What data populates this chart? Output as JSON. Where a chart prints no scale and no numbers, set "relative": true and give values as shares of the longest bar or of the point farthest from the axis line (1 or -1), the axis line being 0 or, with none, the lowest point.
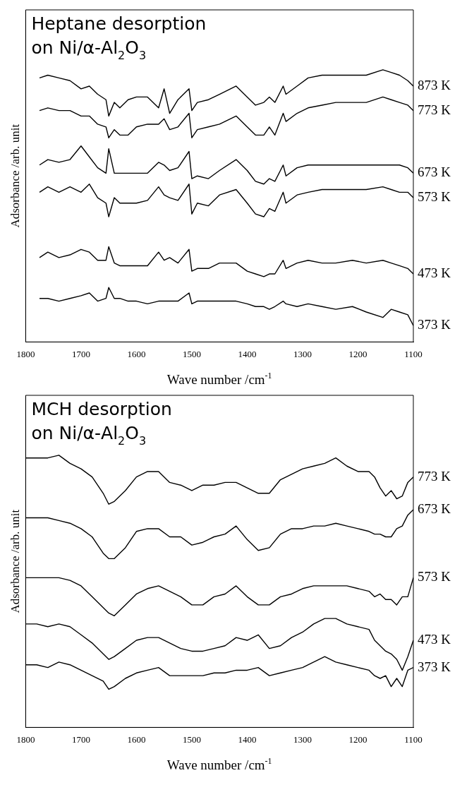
{
  "chart_data": [
    {
      "type": "line",
      "title": "Heptane desorption\non Ni/α-Al$_{2}$O$_{3}$",
      "xlabel": "Wave number /cm$^{-1}$",
      "ylabel": "Adsorbance /arb. unit",
      "relative": true,
      "xlim": [
        1800,
        1100
      ],
      "xticks": [
        1800,
        1700,
        1600,
        1500,
        1400,
        1300,
        1200,
        1100
      ],
      "x": [
        1775,
        1760,
        1740,
        1720,
        1700,
        1685,
        1670,
        1655,
        1650,
        1640,
        1630,
        1615,
        1600,
        1580,
        1560,
        1550,
        1540,
        1525,
        1505,
        1500,
        1490,
        1470,
        1450,
        1420,
        1400,
        1385,
        1370,
        1360,
        1350,
        1335,
        1330,
        1310,
        1290,
        1265,
        1240,
        1210,
        1185,
        1155,
        1140,
        1125,
        1110,
        1100
      ],
      "series": [
        {
          "name": "873 K",
          "color": "#000000",
          "values": [
            0.97,
            0.98,
            0.97,
            0.96,
            0.93,
            0.94,
            0.91,
            0.89,
            0.83,
            0.88,
            0.86,
            0.89,
            0.9,
            0.9,
            0.86,
            0.93,
            0.84,
            0.89,
            0.93,
            0.85,
            0.88,
            0.89,
            0.91,
            0.94,
            0.9,
            0.87,
            0.88,
            0.9,
            0.88,
            0.94,
            0.91,
            0.94,
            0.97,
            0.98,
            0.98,
            0.98,
            0.98,
            1,
            0.99,
            0.98,
            0.96,
            0.94
          ]
        },
        {
          "name": "773 K",
          "color": "#000000",
          "values": [
            0.85,
            0.86,
            0.85,
            0.85,
            0.83,
            0.83,
            0.8,
            0.79,
            0.75,
            0.78,
            0.76,
            0.76,
            0.79,
            0.8,
            0.8,
            0.82,
            0.78,
            0.79,
            0.84,
            0.75,
            0.78,
            0.79,
            0.8,
            0.83,
            0.79,
            0.76,
            0.76,
            0.79,
            0.76,
            0.84,
            0.81,
            0.84,
            0.86,
            0.87,
            0.88,
            0.88,
            0.88,
            0.9,
            0.89,
            0.88,
            0.87,
            0.85
          ]
        },
        {
          "name": "673 K",
          "color": "#000000",
          "values": [
            0.65,
            0.67,
            0.66,
            0.67,
            0.72,
            0.68,
            0.64,
            0.62,
            0.71,
            0.62,
            0.62,
            0.62,
            0.62,
            0.62,
            0.66,
            0.65,
            0.63,
            0.64,
            0.7,
            0.6,
            0.61,
            0.6,
            0.63,
            0.67,
            0.63,
            0.59,
            0.58,
            0.6,
            0.59,
            0.65,
            0.61,
            0.64,
            0.65,
            0.65,
            0.65,
            0.65,
            0.65,
            0.65,
            0.65,
            0.65,
            0.64,
            0.62
          ]
        },
        {
          "name": "573 K",
          "color": "#000000",
          "values": [
            0.55,
            0.57,
            0.55,
            0.57,
            0.55,
            0.58,
            0.53,
            0.51,
            0.46,
            0.53,
            0.51,
            0.51,
            0.51,
            0.52,
            0.57,
            0.54,
            0.53,
            0.52,
            0.58,
            0.47,
            0.51,
            0.5,
            0.54,
            0.56,
            0.51,
            0.47,
            0.46,
            0.49,
            0.48,
            0.55,
            0.51,
            0.54,
            0.55,
            0.56,
            0.56,
            0.56,
            0.56,
            0.57,
            0.56,
            0.55,
            0.55,
            0.53
          ]
        },
        {
          "name": "473 K",
          "color": "#000000",
          "values": [
            0.31,
            0.33,
            0.31,
            0.32,
            0.34,
            0.33,
            0.3,
            0.3,
            0.35,
            0.29,
            0.28,
            0.28,
            0.28,
            0.28,
            0.33,
            0.3,
            0.31,
            0.29,
            0.34,
            0.26,
            0.27,
            0.27,
            0.29,
            0.29,
            0.26,
            0.25,
            0.24,
            0.25,
            0.25,
            0.3,
            0.27,
            0.29,
            0.3,
            0.29,
            0.29,
            0.3,
            0.29,
            0.3,
            0.29,
            0.28,
            0.27,
            0.25
          ]
        },
        {
          "name": "373 K",
          "color": "#000000",
          "values": [
            0.16,
            0.16,
            0.15,
            0.16,
            0.17,
            0.18,
            0.15,
            0.16,
            0.2,
            0.16,
            0.16,
            0.15,
            0.15,
            0.14,
            0.15,
            0.15,
            0.15,
            0.15,
            0.18,
            0.14,
            0.15,
            0.15,
            0.15,
            0.15,
            0.14,
            0.13,
            0.13,
            0.12,
            0.13,
            0.15,
            0.14,
            0.13,
            0.14,
            0.13,
            0.12,
            0.13,
            0.11,
            0.09,
            0.12,
            0.11,
            0.1,
            0.06
          ]
        }
      ]
    },
    {
      "type": "line",
      "title": "MCH desorption\non Ni/α-Al$_{2}$O$_{3}$",
      "xlabel": "Wave number /cm$^{-1}$",
      "ylabel": "Adsorbance /arb. unit",
      "relative": true,
      "xlim": [
        1800,
        1100
      ],
      "xticks": [
        1800,
        1700,
        1600,
        1500,
        1400,
        1300,
        1200,
        1100
      ],
      "x": [
        1800,
        1780,
        1760,
        1740,
        1720,
        1700,
        1680,
        1660,
        1650,
        1640,
        1620,
        1600,
        1580,
        1560,
        1540,
        1520,
        1500,
        1480,
        1460,
        1440,
        1420,
        1400,
        1380,
        1360,
        1340,
        1320,
        1300,
        1280,
        1260,
        1240,
        1220,
        1200,
        1180,
        1170,
        1160,
        1150,
        1140,
        1130,
        1120,
        1110,
        1100
      ],
      "series": [
        {
          "name": "773 K",
          "color": "#000000",
          "values": [
            0.99,
            0.99,
            0.99,
            1,
            0.97,
            0.95,
            0.92,
            0.86,
            0.82,
            0.83,
            0.87,
            0.92,
            0.94,
            0.94,
            0.9,
            0.89,
            0.87,
            0.89,
            0.89,
            0.9,
            0.9,
            0.88,
            0.86,
            0.86,
            0.91,
            0.93,
            0.95,
            0.96,
            0.97,
            0.99,
            0.96,
            0.94,
            0.94,
            0.92,
            0.88,
            0.85,
            0.87,
            0.84,
            0.85,
            0.9,
            0.92
          ]
        },
        {
          "name": "673 K",
          "color": "#000000",
          "values": [
            0.77,
            0.77,
            0.77,
            0.76,
            0.75,
            0.73,
            0.7,
            0.64,
            0.62,
            0.62,
            0.66,
            0.72,
            0.73,
            0.73,
            0.7,
            0.7,
            0.67,
            0.68,
            0.7,
            0.71,
            0.74,
            0.69,
            0.65,
            0.66,
            0.71,
            0.73,
            0.73,
            0.74,
            0.74,
            0.75,
            0.74,
            0.73,
            0.72,
            0.71,
            0.71,
            0.7,
            0.7,
            0.73,
            0.74,
            0.78,
            0.8
          ]
        },
        {
          "name": "573 K",
          "color": "#000000",
          "values": [
            0.55,
            0.55,
            0.55,
            0.55,
            0.54,
            0.52,
            0.48,
            0.44,
            0.42,
            0.41,
            0.45,
            0.49,
            0.51,
            0.52,
            0.5,
            0.48,
            0.45,
            0.45,
            0.48,
            0.49,
            0.52,
            0.48,
            0.45,
            0.45,
            0.48,
            0.49,
            0.51,
            0.52,
            0.52,
            0.52,
            0.52,
            0.51,
            0.5,
            0.48,
            0.49,
            0.47,
            0.47,
            0.45,
            0.48,
            0.48,
            0.55
          ]
        },
        {
          "name": "473 K",
          "color": "#000000",
          "values": [
            0.38,
            0.38,
            0.37,
            0.38,
            0.37,
            0.34,
            0.31,
            0.27,
            0.25,
            0.26,
            0.29,
            0.32,
            0.33,
            0.33,
            0.31,
            0.29,
            0.28,
            0.28,
            0.29,
            0.3,
            0.33,
            0.32,
            0.34,
            0.29,
            0.3,
            0.33,
            0.35,
            0.38,
            0.4,
            0.4,
            0.38,
            0.37,
            0.36,
            0.32,
            0.3,
            0.28,
            0.27,
            0.25,
            0.21,
            0.26,
            0.32
          ]
        },
        {
          "name": "373 K",
          "color": "#000000",
          "values": [
            0.23,
            0.23,
            0.22,
            0.24,
            0.23,
            0.21,
            0.19,
            0.17,
            0.14,
            0.15,
            0.18,
            0.2,
            0.21,
            0.22,
            0.19,
            0.19,
            0.19,
            0.19,
            0.2,
            0.2,
            0.21,
            0.21,
            0.22,
            0.19,
            0.2,
            0.21,
            0.22,
            0.24,
            0.26,
            0.24,
            0.23,
            0.22,
            0.21,
            0.19,
            0.18,
            0.19,
            0.15,
            0.18,
            0.15,
            0.21,
            0.22
          ]
        }
      ]
    }
  ]
}
